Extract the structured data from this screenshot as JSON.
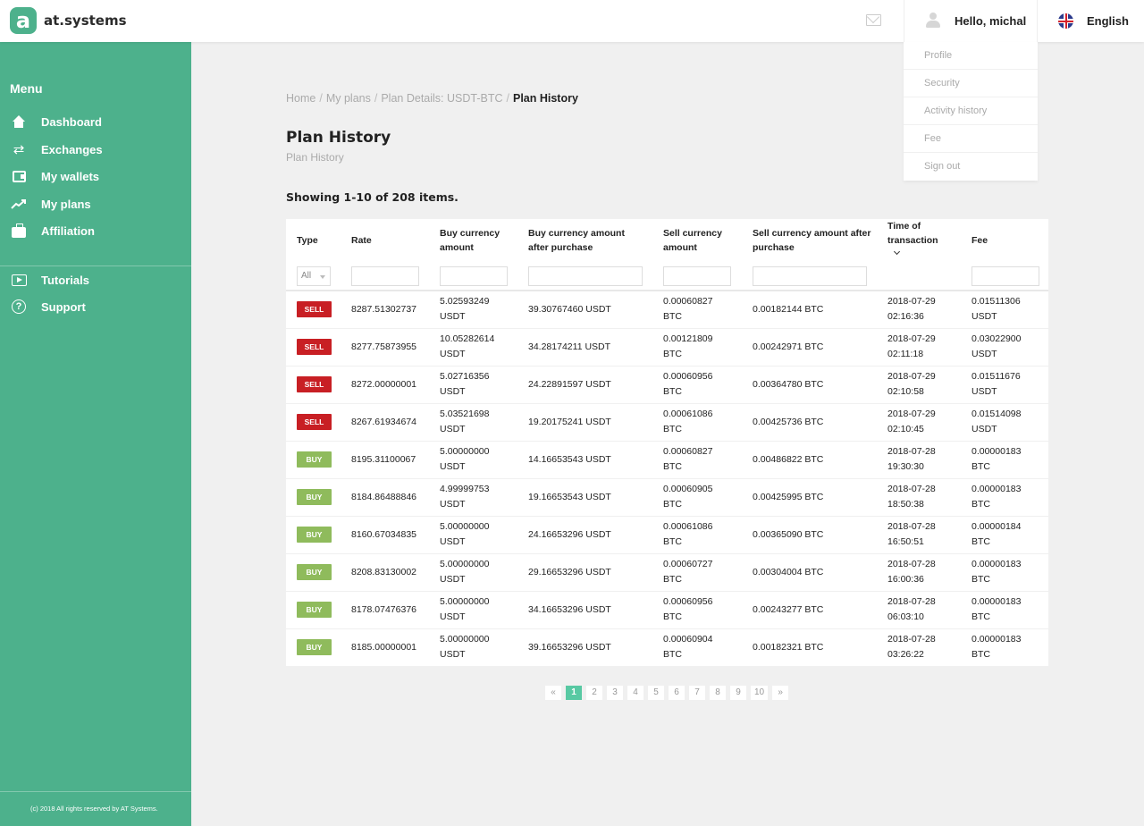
{
  "header": {
    "logo_letter": "a",
    "logo_text": "at.systems",
    "greeting": "Hello, michal",
    "language": "English"
  },
  "user_menu": {
    "items": [
      "Profile",
      "Security",
      "Activity history",
      "Fee",
      "Sign out"
    ]
  },
  "sidebar": {
    "menu_title": "Menu",
    "items": [
      {
        "label": "Dashboard",
        "icon": "home-icon"
      },
      {
        "label": "Exchanges",
        "icon": "exchange-icon"
      },
      {
        "label": "My wallets",
        "icon": "wallet-icon"
      },
      {
        "label": "My plans",
        "icon": "trend-icon"
      },
      {
        "label": "Affiliation",
        "icon": "briefcase-icon"
      }
    ],
    "secondary_items": [
      {
        "label": "Tutorials",
        "icon": "play-icon"
      },
      {
        "label": "Support",
        "icon": "question-icon"
      }
    ],
    "footer": "(c) 2018 All rights reserved by AT Systems."
  },
  "breadcrumb": {
    "items": [
      "Home",
      "My plans",
      "Plan Details: USDT-BTC"
    ],
    "current": "Plan History"
  },
  "page": {
    "title": "Plan History",
    "subtitle": "Plan History",
    "summary": "Showing 1-10 of 208 items."
  },
  "table": {
    "columns": [
      "Type",
      "Rate",
      "Buy currency amount",
      "Buy currency amount after purchase",
      "Sell currency amount",
      "Sell currency amount after purchase",
      "Time of transaction",
      "Fee"
    ],
    "type_filter": "All",
    "rows": [
      {
        "type": "SELL",
        "rate": "8287.51302737",
        "buy_amount": "5.02593249",
        "buy_cur": "USDT",
        "buy_after": "39.30767460 USDT",
        "sell_amount": "0.00060827",
        "sell_cur": "BTC",
        "sell_after": "0.00182144 BTC",
        "date": "2018-07-29",
        "time": "02:16:36",
        "fee": "0.01511306",
        "fee_cur": "USDT"
      },
      {
        "type": "SELL",
        "rate": "8277.75873955",
        "buy_amount": "10.05282614",
        "buy_cur": "USDT",
        "buy_after": "34.28174211 USDT",
        "sell_amount": "0.00121809",
        "sell_cur": "BTC",
        "sell_after": "0.00242971 BTC",
        "date": "2018-07-29",
        "time": "02:11:18",
        "fee": "0.03022900",
        "fee_cur": "USDT"
      },
      {
        "type": "SELL",
        "rate": "8272.00000001",
        "buy_amount": "5.02716356",
        "buy_cur": "USDT",
        "buy_after": "24.22891597 USDT",
        "sell_amount": "0.00060956",
        "sell_cur": "BTC",
        "sell_after": "0.00364780 BTC",
        "date": "2018-07-29",
        "time": "02:10:58",
        "fee": "0.01511676",
        "fee_cur": "USDT"
      },
      {
        "type": "SELL",
        "rate": "8267.61934674",
        "buy_amount": "5.03521698",
        "buy_cur": "USDT",
        "buy_after": "19.20175241 USDT",
        "sell_amount": "0.00061086",
        "sell_cur": "BTC",
        "sell_after": "0.00425736 BTC",
        "date": "2018-07-29",
        "time": "02:10:45",
        "fee": "0.01514098",
        "fee_cur": "USDT"
      },
      {
        "type": "BUY",
        "rate": "8195.31100067",
        "buy_amount": "5.00000000",
        "buy_cur": "USDT",
        "buy_after": "14.16653543 USDT",
        "sell_amount": "0.00060827",
        "sell_cur": "BTC",
        "sell_after": "0.00486822 BTC",
        "date": "2018-07-28",
        "time": "19:30:30",
        "fee": "0.00000183",
        "fee_cur": "BTC"
      },
      {
        "type": "BUY",
        "rate": "8184.86488846",
        "buy_amount": "4.99999753",
        "buy_cur": "USDT",
        "buy_after": "19.16653543 USDT",
        "sell_amount": "0.00060905",
        "sell_cur": "BTC",
        "sell_after": "0.00425995 BTC",
        "date": "2018-07-28",
        "time": "18:50:38",
        "fee": "0.00000183",
        "fee_cur": "BTC"
      },
      {
        "type": "BUY",
        "rate": "8160.67034835",
        "buy_amount": "5.00000000",
        "buy_cur": "USDT",
        "buy_after": "24.16653296 USDT",
        "sell_amount": "0.00061086",
        "sell_cur": "BTC",
        "sell_after": "0.00365090 BTC",
        "date": "2018-07-28",
        "time": "16:50:51",
        "fee": "0.00000184",
        "fee_cur": "BTC"
      },
      {
        "type": "BUY",
        "rate": "8208.83130002",
        "buy_amount": "5.00000000",
        "buy_cur": "USDT",
        "buy_after": "29.16653296 USDT",
        "sell_amount": "0.00060727",
        "sell_cur": "BTC",
        "sell_after": "0.00304004 BTC",
        "date": "2018-07-28",
        "time": "16:00:36",
        "fee": "0.00000183",
        "fee_cur": "BTC"
      },
      {
        "type": "BUY",
        "rate": "8178.07476376",
        "buy_amount": "5.00000000",
        "buy_cur": "USDT",
        "buy_after": "34.16653296 USDT",
        "sell_amount": "0.00060956",
        "sell_cur": "BTC",
        "sell_after": "0.00243277 BTC",
        "date": "2018-07-28",
        "time": "06:03:10",
        "fee": "0.00000183",
        "fee_cur": "BTC"
      },
      {
        "type": "BUY",
        "rate": "8185.00000001",
        "buy_amount": "5.00000000",
        "buy_cur": "USDT",
        "buy_after": "39.16653296 USDT",
        "sell_amount": "0.00060904",
        "sell_cur": "BTC",
        "sell_after": "0.00182321 BTC",
        "date": "2018-07-28",
        "time": "03:26:22",
        "fee": "0.00000183",
        "fee_cur": "BTC"
      }
    ]
  },
  "pagination": {
    "prev": "«",
    "next": "»",
    "pages": [
      "1",
      "2",
      "3",
      "4",
      "5",
      "6",
      "7",
      "8",
      "9",
      "10"
    ],
    "active": "1"
  },
  "colors": {
    "brand": "#4db18c",
    "sell": "#c81f24",
    "buy": "#8fbb5c",
    "active_page": "#58c9a3"
  }
}
